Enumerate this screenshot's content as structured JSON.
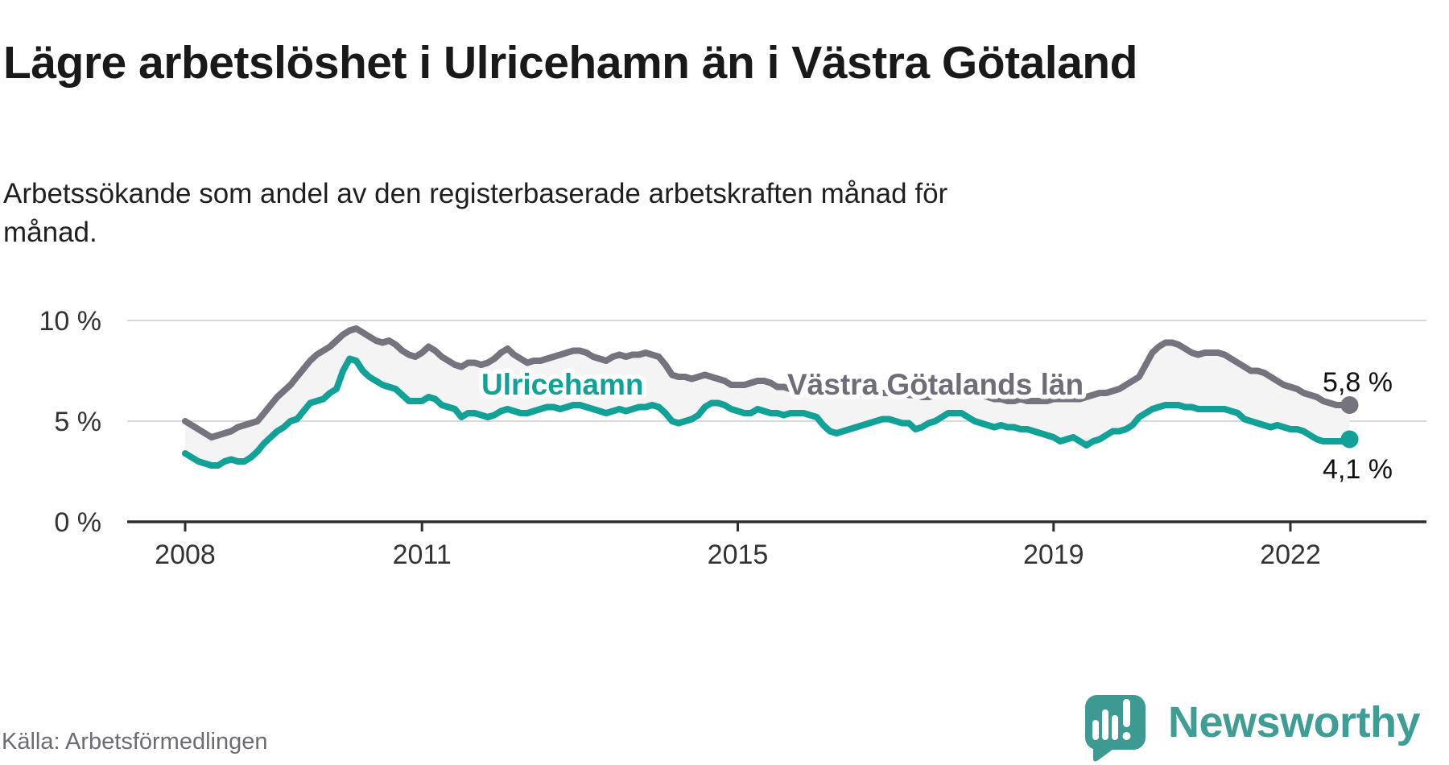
{
  "header": {
    "title": "Lägre arbetslöshet i Ulricehamn än i Västra Götaland",
    "subtitle": "Arbetssökande som andel av den registerbaserade arbetskraften månad för månad."
  },
  "footer": {
    "source": "Källa: Arbetsförmedlingen",
    "logo_text": "Newsworthy"
  },
  "colors": {
    "ulricehamn_teal": "#12a196",
    "vastra_gray": "#75747e",
    "label_gray": "#6e6d78",
    "fill_between": "#f4f4f4",
    "grid": "#d8d8d8",
    "axis": "#2e2e2e",
    "logo_teal": "#3d9a93"
  },
  "chart_data": {
    "type": "line",
    "x_unit": "month",
    "x_start": "2008-01",
    "x_end": "2022-10",
    "ylim": [
      0,
      10
    ],
    "grid": "horizontal",
    "legend_position": "inline-labels",
    "yticks": [
      {
        "value": 10,
        "label": "10 %"
      },
      {
        "value": 5,
        "label": "5 %"
      },
      {
        "value": 0,
        "label": "0 %"
      }
    ],
    "xticks": [
      {
        "year": 2008,
        "label": "2008"
      },
      {
        "year": 2011,
        "label": "2011"
      },
      {
        "year": 2015,
        "label": "2015"
      },
      {
        "year": 2019,
        "label": "2019"
      },
      {
        "year": 2022,
        "label": "2022"
      }
    ],
    "series": [
      {
        "name": "Västra Götalands län",
        "color": "#75747e",
        "end_label": "5,8 %",
        "end_value": 5.8,
        "values": [
          5.0,
          4.8,
          4.6,
          4.4,
          4.2,
          4.3,
          4.4,
          4.5,
          4.7,
          4.8,
          4.9,
          5.0,
          5.4,
          5.8,
          6.2,
          6.5,
          6.8,
          7.2,
          7.6,
          8.0,
          8.3,
          8.5,
          8.7,
          9.0,
          9.3,
          9.5,
          9.6,
          9.4,
          9.2,
          9.0,
          8.9,
          9.0,
          8.8,
          8.5,
          8.3,
          8.2,
          8.4,
          8.7,
          8.5,
          8.2,
          8.0,
          7.8,
          7.7,
          7.9,
          7.9,
          7.8,
          7.9,
          8.1,
          8.4,
          8.6,
          8.3,
          8.1,
          7.9,
          8.0,
          8.0,
          8.1,
          8.2,
          8.3,
          8.4,
          8.5,
          8.5,
          8.4,
          8.2,
          8.1,
          8.0,
          8.2,
          8.3,
          8.2,
          8.3,
          8.3,
          8.4,
          8.3,
          8.2,
          7.8,
          7.3,
          7.2,
          7.2,
          7.1,
          7.2,
          7.3,
          7.2,
          7.1,
          7.0,
          6.8,
          6.8,
          6.8,
          6.9,
          7.0,
          7.0,
          6.9,
          6.7,
          6.7,
          6.6,
          6.6,
          6.7,
          6.6,
          6.6,
          6.6,
          6.5,
          6.4,
          6.4,
          6.3,
          6.3,
          6.4,
          6.4,
          6.4,
          6.4,
          6.4,
          6.4,
          6.4,
          6.3,
          6.3,
          6.2,
          6.2,
          6.3,
          6.4,
          6.4,
          6.4,
          6.4,
          6.4,
          6.4,
          6.3,
          6.2,
          6.1,
          6.1,
          6.0,
          6.0,
          6.1,
          6.0,
          6.0,
          6.0,
          6.0,
          6.1,
          6.1,
          6.1,
          6.1,
          6.1,
          6.2,
          6.3,
          6.4,
          6.4,
          6.5,
          6.6,
          6.8,
          7.0,
          7.2,
          7.8,
          8.4,
          8.7,
          8.9,
          8.9,
          8.8,
          8.6,
          8.4,
          8.3,
          8.4,
          8.4,
          8.4,
          8.3,
          8.1,
          7.9,
          7.7,
          7.5,
          7.5,
          7.4,
          7.2,
          7.0,
          6.8,
          6.7,
          6.6,
          6.4,
          6.3,
          6.2,
          6.0,
          5.9,
          5.8,
          5.8,
          5.8
        ]
      },
      {
        "name": "Ulricehamn",
        "color": "#12a196",
        "end_label": "4,1 %",
        "end_value": 4.1,
        "values": [
          3.4,
          3.2,
          3.0,
          2.9,
          2.8,
          2.8,
          3.0,
          3.1,
          3.0,
          3.0,
          3.2,
          3.5,
          3.9,
          4.2,
          4.5,
          4.7,
          5.0,
          5.1,
          5.5,
          5.9,
          6.0,
          6.1,
          6.4,
          6.6,
          7.5,
          8.1,
          8.0,
          7.5,
          7.2,
          7.0,
          6.8,
          6.7,
          6.6,
          6.3,
          6.0,
          6.0,
          6.0,
          6.2,
          6.1,
          5.8,
          5.7,
          5.6,
          5.2,
          5.4,
          5.4,
          5.3,
          5.2,
          5.3,
          5.5,
          5.6,
          5.5,
          5.4,
          5.4,
          5.5,
          5.6,
          5.7,
          5.7,
          5.6,
          5.7,
          5.8,
          5.8,
          5.7,
          5.6,
          5.5,
          5.4,
          5.5,
          5.6,
          5.5,
          5.6,
          5.7,
          5.7,
          5.8,
          5.7,
          5.4,
          5.0,
          4.9,
          5.0,
          5.1,
          5.3,
          5.7,
          5.9,
          5.9,
          5.8,
          5.6,
          5.5,
          5.4,
          5.4,
          5.6,
          5.5,
          5.4,
          5.4,
          5.3,
          5.4,
          5.4,
          5.4,
          5.3,
          5.2,
          4.8,
          4.5,
          4.4,
          4.5,
          4.6,
          4.7,
          4.8,
          4.9,
          5.0,
          5.1,
          5.1,
          5.0,
          4.9,
          4.9,
          4.6,
          4.7,
          4.9,
          5.0,
          5.2,
          5.4,
          5.4,
          5.4,
          5.2,
          5.0,
          4.9,
          4.8,
          4.7,
          4.8,
          4.7,
          4.7,
          4.6,
          4.6,
          4.5,
          4.4,
          4.3,
          4.2,
          4.0,
          4.1,
          4.2,
          4.0,
          3.8,
          4.0,
          4.1,
          4.3,
          4.5,
          4.5,
          4.6,
          4.8,
          5.2,
          5.4,
          5.6,
          5.7,
          5.8,
          5.8,
          5.8,
          5.7,
          5.7,
          5.6,
          5.6,
          5.6,
          5.6,
          5.6,
          5.5,
          5.4,
          5.1,
          5.0,
          4.9,
          4.8,
          4.7,
          4.8,
          4.7,
          4.6,
          4.6,
          4.5,
          4.3,
          4.1,
          4.0,
          4.0,
          4.0,
          4.0,
          4.1
        ]
      }
    ]
  }
}
